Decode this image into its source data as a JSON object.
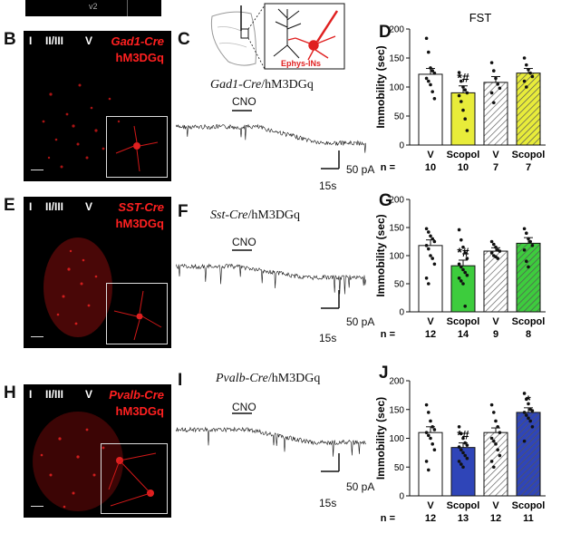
{
  "top_strip": {
    "label": "v2"
  },
  "schematic": {
    "label": "Ephys-INs"
  },
  "panels": [
    {
      "micro_label": "B",
      "trace_label": "C",
      "chart_label": "D",
      "cre": "Gad1-Cre",
      "dreadd": "hM3DGq",
      "layers": [
        "I",
        "II/III",
        "V"
      ],
      "trace_title_cre": "Gad1-Cre",
      "trace_title_rest": "/hM3DGq",
      "cno": "CNO",
      "scale_y": "50 pA",
      "scale_x": "15s",
      "color": "#e8ec3a"
    },
    {
      "micro_label": "E",
      "trace_label": "F",
      "chart_label": "G",
      "cre": "SST-Cre",
      "dreadd": "hM3DGq",
      "layers": [
        "I",
        "II/III",
        "V"
      ],
      "trace_title_cre": "Sst-Cre",
      "trace_title_rest": "/hM3DGq",
      "cno": "CNO",
      "scale_y": "50 pA",
      "scale_x": "15s",
      "color": "#3dcc3d"
    },
    {
      "micro_label": "H",
      "trace_label": "I",
      "chart_label": "J",
      "cre": "Pvalb-Cre",
      "dreadd": "hM3DGq",
      "layers": [
        "I",
        "II/III",
        "V"
      ],
      "trace_title_cre": "Pvalb-Cre",
      "trace_title_rest": "/hM3DGq",
      "cno": "CNO",
      "scale_y": "50 pA",
      "scale_x": "15s",
      "color": "#2f45b8"
    }
  ],
  "chart_data": [
    {
      "type": "bar",
      "title": "FST",
      "ylabel": "Immobility (sec)",
      "ylim": [
        0,
        200
      ],
      "yticks": [
        0,
        50,
        100,
        150,
        200
      ],
      "categories": [
        "V",
        "Scopol",
        "V",
        "Scopol"
      ],
      "values": [
        122,
        90,
        108,
        124
      ],
      "errors": [
        10,
        12,
        10,
        8
      ],
      "n": [
        10,
        10,
        7,
        7
      ],
      "n_label": "n =",
      "annotations": [
        "",
        "*#",
        "",
        ""
      ],
      "points": [
        [
          184,
          160,
          133,
          128,
          124,
          115,
          110,
          104,
          92,
          80
        ],
        [
          125,
          110,
          100,
          95,
          90,
          85,
          75,
          60,
          45,
          25
        ],
        [
          142,
          128,
          115,
          105,
          98,
          90,
          73
        ],
        [
          150,
          138,
          130,
          124,
          118,
          110,
          100
        ]
      ]
    },
    {
      "type": "bar",
      "title": "",
      "ylabel": "Immobility (sec)",
      "ylim": [
        0,
        200
      ],
      "yticks": [
        0,
        50,
        100,
        150,
        200
      ],
      "categories": [
        "V",
        "Scopol",
        "V",
        "Scopol"
      ],
      "values": [
        118,
        82,
        108,
        122
      ],
      "errors": [
        10,
        10,
        6,
        10
      ],
      "n": [
        12,
        14,
        9,
        8
      ],
      "n_label": "n =",
      "annotations": [
        "",
        "*#",
        "",
        ""
      ],
      "points": [
        [
          148,
          142,
          135,
          130,
          125,
          118,
          112,
          100,
          95,
          85,
          60,
          50
        ],
        [
          146,
          128,
          115,
          105,
          95,
          85,
          80,
          75,
          70,
          65,
          60,
          55,
          50,
          10
        ],
        [
          125,
          120,
          115,
          110,
          108,
          105,
          100,
          98,
          95
        ],
        [
          148,
          140,
          130,
          125,
          118,
          110,
          90,
          80
        ]
      ]
    },
    {
      "type": "bar",
      "title": "",
      "ylabel": "Immobility (sec)",
      "ylim": [
        0,
        200
      ],
      "yticks": [
        0,
        50,
        100,
        150,
        200
      ],
      "categories": [
        "V",
        "Scopol",
        "V",
        "Scopol"
      ],
      "values": [
        110,
        84,
        110,
        145
      ],
      "errors": [
        10,
        8,
        8,
        8
      ],
      "n": [
        12,
        13,
        12,
        11
      ],
      "n_label": "n =",
      "annotations": [
        "",
        "*#",
        "",
        "*"
      ],
      "points": [
        [
          158,
          145,
          130,
          120,
          115,
          110,
          105,
          100,
          90,
          80,
          60,
          45
        ],
        [
          120,
          108,
          100,
          92,
          88,
          85,
          80,
          75,
          70,
          65,
          60,
          55,
          50
        ],
        [
          158,
          145,
          130,
          120,
          110,
          100,
          95,
          90,
          80,
          70,
          60,
          50
        ],
        [
          178,
          168,
          160,
          150,
          148,
          145,
          140,
          135,
          130,
          120,
          95
        ]
      ]
    }
  ]
}
